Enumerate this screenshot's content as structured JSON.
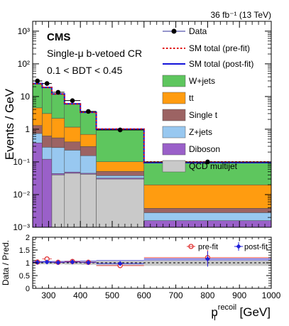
{
  "chart_data": [
    {
      "type": "area",
      "panel": "upper",
      "lumi_label": "36 fb⁻¹ (13 TeV)",
      "experiment": "CMS",
      "region": "Single-μ b-vetoed CR",
      "selection": "0.1 < BDT < 0.45",
      "ylabel": "Events / GeV",
      "yscale": "log",
      "ylim": [
        0.001,
        2000
      ],
      "xlim": [
        250,
        1000
      ],
      "bin_edges": [
        250,
        280,
        310,
        350,
        400,
        450,
        600,
        1000
      ],
      "stack": [
        {
          "name": "QCD multijet",
          "color": "#c9c9c9",
          "values": [
            0.001,
            0.001,
            0.04,
            0.045,
            0.042,
            0.03,
            0.001
          ]
        },
        {
          "name": "Diboson",
          "color": "#9a60c9",
          "values": [
            0.38,
            0.12,
            0.004,
            0.004,
            0.003,
            0.002,
            0.0006
          ]
        },
        {
          "name": "Z+jets",
          "color": "#98c8f0",
          "values": [
            0.36,
            0.16,
            0.23,
            0.18,
            0.11,
            0.006,
            0.0012
          ]
        },
        {
          "name": "Single t",
          "color": "#9c6363",
          "values": [
            0.56,
            0.34,
            0.27,
            0.18,
            0.14,
            0.013,
            0.001
          ]
        },
        {
          "name": "tt",
          "color": "#ff9c10",
          "values": [
            3.2,
            2.4,
            1.6,
            0.75,
            0.4,
            0.05,
            0.016
          ]
        },
        {
          "name": "W+jets",
          "color": "#5ec65e",
          "values": [
            20.5,
            16.0,
            9.8,
            4.8,
            2.6,
            0.9,
            0.075
          ]
        }
      ],
      "sm_prefit": [
        24.3,
        18.9,
        11.9,
        5.9,
        3.3,
        1.02,
        0.1
      ],
      "sm_postfit": [
        25.0,
        19.0,
        12.0,
        6.0,
        3.3,
        1.0,
        0.095
      ],
      "data": {
        "name": "Data",
        "x": [
          265,
          295,
          330,
          375,
          425,
          525,
          800
        ],
        "y": [
          30,
          25,
          13.5,
          7.5,
          3.5,
          0.95,
          0.1
        ]
      },
      "legend": {
        "position": "top-right",
        "entries": [
          "Data",
          "SM total (pre-fit)",
          "SM total (post-fit)",
          "W+jets",
          "tt",
          "Single t",
          "Z+jets",
          "Diboson",
          "QCD multijet"
        ]
      },
      "yticks": [
        "10⁻³",
        "10⁻²",
        "10⁻¹",
        "1",
        "10",
        "10²",
        "10³"
      ]
    },
    {
      "type": "scatter",
      "panel": "lower",
      "ylabel": "Data / Pred.",
      "xlabel": "p",
      "xlabel_sup": "recoil",
      "xlabel_sub": "T",
      "xlabel_unit": " [GeV]",
      "xlim": [
        250,
        1000
      ],
      "ylim": [
        0,
        2
      ],
      "yticks": [
        "0",
        "0.5",
        "1",
        "1.5",
        "2"
      ],
      "xticks": [
        "300",
        "400",
        "500",
        "600",
        "700",
        "800",
        "900",
        "1000"
      ],
      "series": [
        {
          "name": "pre-fit",
          "color": "#e03030",
          "x": [
            265,
            295,
            330,
            375,
            425,
            525,
            800
          ],
          "y": [
            1.03,
            1.15,
            1.02,
            1.05,
            1.02,
            0.89,
            1.2
          ],
          "err": [
            0.04,
            0.06,
            0.05,
            0.06,
            0.08,
            0.09,
            0.3
          ]
        },
        {
          "name": "post-fit",
          "color": "#1f1fd9",
          "x": [
            265,
            295,
            330,
            375,
            425,
            525,
            800
          ],
          "y": [
            1.02,
            1.03,
            1.01,
            1.03,
            1.01,
            0.97,
            1.15
          ],
          "err": [
            0.04,
            0.06,
            0.05,
            0.06,
            0.08,
            0.09,
            0.3
          ]
        }
      ],
      "unc_band": [
        0.06,
        0.06,
        0.06,
        0.07,
        0.08,
        0.1,
        0.12
      ],
      "reference_line": 1
    }
  ]
}
